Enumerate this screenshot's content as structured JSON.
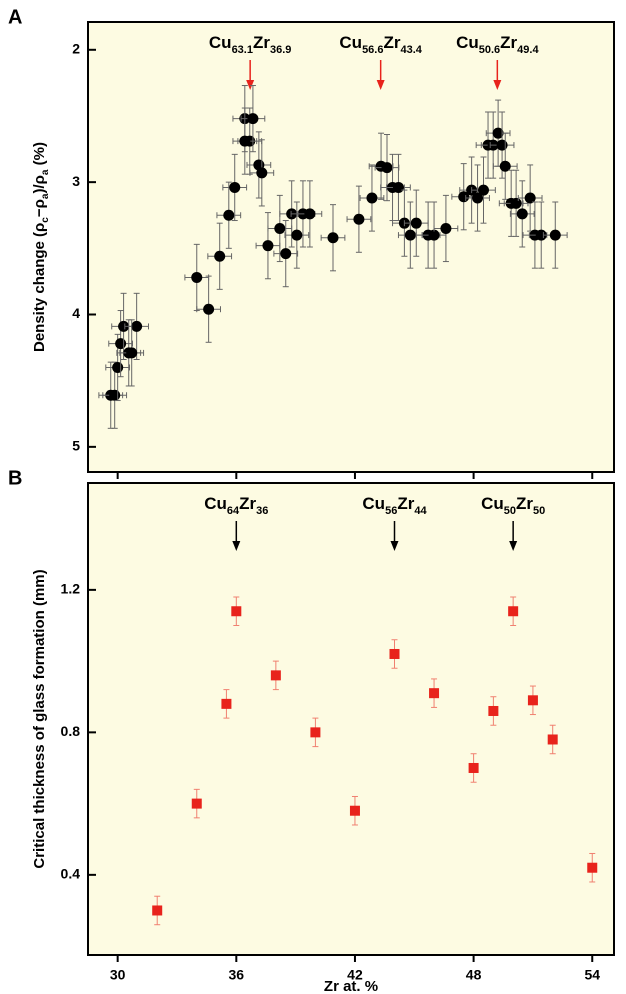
{
  "chart_data": [
    {
      "type": "scatter",
      "panel_label": "A",
      "y_label": {
        "parts": [
          "Density change (ρ",
          "c",
          "−ρ",
          "a",
          ")/ρ",
          "a",
          " (%)"
        ]
      },
      "xlim": [
        28.5,
        55.1
      ],
      "ylim": [
        1.79,
        5.19
      ],
      "invert_y": true,
      "yticks": [
        2,
        3,
        4,
        5
      ],
      "annotations": [
        {
          "parts": [
            "Cu",
            "63.1",
            "Zr",
            "36.9"
          ],
          "x": 36.7,
          "color": "#e8231c"
        },
        {
          "parts": [
            "Cu",
            "56.6",
            "Zr",
            "43.4"
          ],
          "x": 43.3,
          "color": "#e8231c"
        },
        {
          "parts": [
            "Cu",
            "50.6",
            "Zr",
            "49.4"
          ],
          "x": 49.2,
          "color": "#e8231c"
        }
      ],
      "series": [
        {
          "color": "#000000",
          "marker": "circle",
          "xerr": 0.6,
          "yerr": 0.25,
          "x": [
            29.65,
            29.85,
            30.0,
            30.15,
            30.3,
            30.96,
            30.56,
            30.71,
            34.0,
            34.6,
            35.16,
            35.62,
            35.92,
            36.43,
            36.68,
            36.84,
            36.43,
            37.14,
            37.29,
            37.6,
            38.2,
            38.5,
            38.8,
            39.06,
            39.37,
            39.72,
            40.89,
            42.2,
            42.86,
            43.32,
            43.62,
            43.9,
            44.2,
            44.5,
            44.8,
            45.1,
            45.7,
            46.0,
            46.6,
            47.5,
            47.9,
            48.2,
            48.5,
            48.73,
            48.99,
            49.24,
            49.44,
            49.6,
            49.9,
            50.15,
            50.46,
            50.86,
            51.1,
            51.42,
            52.13
          ],
          "values": [
            4.61,
            4.61,
            4.4,
            4.22,
            4.09,
            4.09,
            4.29,
            4.29,
            3.72,
            3.96,
            3.56,
            3.25,
            3.04,
            2.52,
            2.69,
            2.52,
            2.69,
            2.87,
            2.93,
            3.48,
            3.35,
            3.54,
            3.24,
            3.4,
            3.24,
            3.24,
            3.42,
            3.28,
            3.12,
            2.88,
            2.89,
            3.04,
            3.04,
            3.31,
            3.4,
            3.31,
            3.4,
            3.4,
            3.35,
            3.11,
            3.06,
            3.12,
            3.06,
            2.72,
            2.72,
            2.63,
            2.72,
            2.88,
            3.16,
            3.16,
            3.24,
            3.12,
            3.4,
            3.4,
            3.4
          ]
        }
      ]
    },
    {
      "type": "scatter",
      "panel_label": "B",
      "y_label": {
        "parts": [
          "Critical thickness of glass formation (mm)"
        ]
      },
      "x_label": "Zr at. %",
      "xlim": [
        28.5,
        55.1
      ],
      "xticks": [
        30,
        36,
        42,
        48,
        54
      ],
      "ylim": [
        0.175,
        1.5
      ],
      "yticks": [
        0.4,
        0.8,
        1.2
      ],
      "annotations": [
        {
          "parts": [
            "Cu",
            "64",
            "Zr",
            "36"
          ],
          "x": 36,
          "color": "#000000"
        },
        {
          "parts": [
            "Cu",
            "56",
            "Zr",
            "44"
          ],
          "x": 44,
          "color": "#000000"
        },
        {
          "parts": [
            "Cu",
            "50",
            "Zr",
            "50"
          ],
          "x": 50,
          "color": "#000000"
        }
      ],
      "series": [
        {
          "color": "#e8231c",
          "marker": "square",
          "yerr": 0.04,
          "x": [
            32,
            34,
            35.5,
            36,
            38,
            40,
            42,
            44,
            46,
            48,
            49,
            50,
            51,
            52,
            54
          ],
          "values": [
            0.3,
            0.6,
            0.88,
            1.14,
            0.96,
            0.8,
            0.58,
            1.02,
            0.91,
            0.7,
            0.86,
            1.14,
            0.89,
            0.78,
            0.42
          ]
        }
      ]
    }
  ]
}
